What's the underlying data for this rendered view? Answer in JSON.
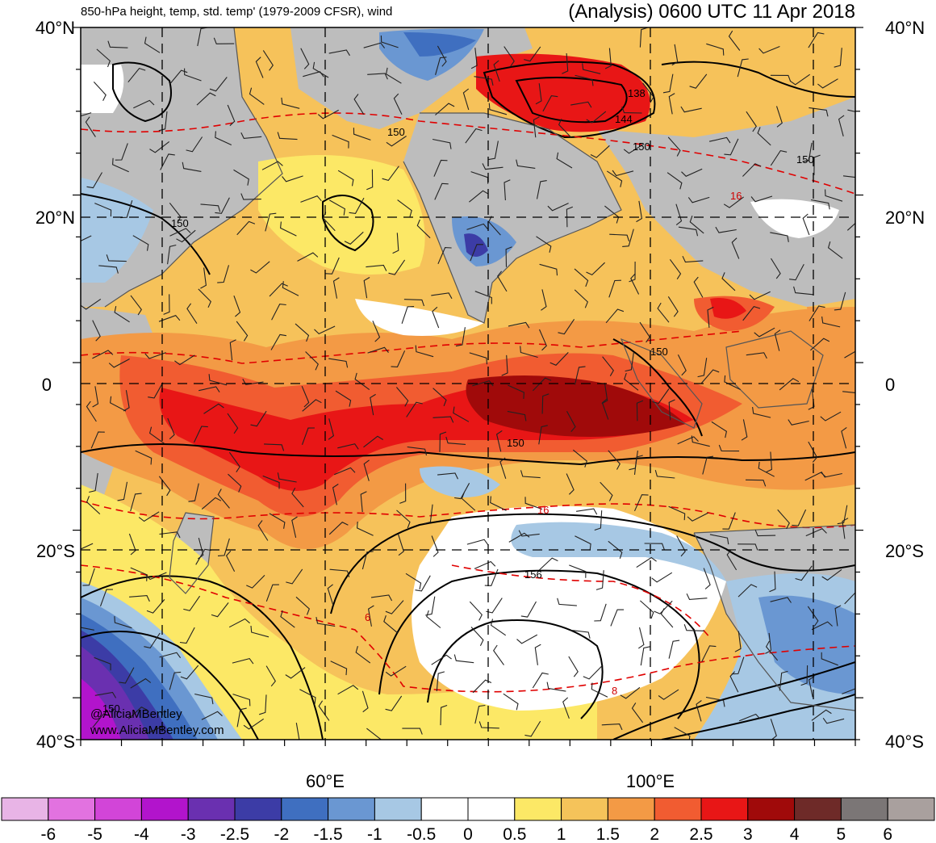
{
  "header": {
    "left_title": "850-hPa height, temp, std. temp' (1979-2009 CFSR), wind",
    "right_title": "(Analysis) 0600 UTC 11 Apr 2018"
  },
  "map": {
    "lat_labels_left": [
      "40°N",
      "20°N",
      "0",
      "20°S",
      "40°S"
    ],
    "lat_labels_right": [
      "40°N",
      "20°N",
      "0",
      "20°S",
      "40°S"
    ],
    "lon_labels": [
      "60°E",
      "100°E"
    ],
    "height_contour_labels": [
      "150",
      "150",
      "150",
      "150",
      "150",
      "138",
      "144",
      "150",
      "156",
      "150"
    ],
    "temp_contour_labels": [
      "16",
      "16",
      "8",
      "6"
    ],
    "credit_lines": [
      "@AliciaMBentley",
      "www.AliciaMBentley.com"
    ]
  },
  "colorbar": {
    "colors": [
      "#e8b4e6",
      "#e272e0",
      "#d245d8",
      "#b214cc",
      "#6a30b0",
      "#3c3ca6",
      "#3f6fc0",
      "#6a97d2",
      "#a7c8e4",
      "#ffffff",
      "#ffffff",
      "#fce866",
      "#f5c35a",
      "#f39a45",
      "#f15c31",
      "#e81616",
      "#a00a0a",
      "#6e2a28",
      "#7b7676",
      "#a9a09e"
    ],
    "tick_labels": [
      "-6",
      "-5",
      "-4",
      "-3",
      "-2.5",
      "-2",
      "-1.5",
      "-1",
      "-0.5",
      "0",
      "0.5",
      "1",
      "1.5",
      "2",
      "2.5",
      "3",
      "4",
      "5",
      "6"
    ]
  }
}
